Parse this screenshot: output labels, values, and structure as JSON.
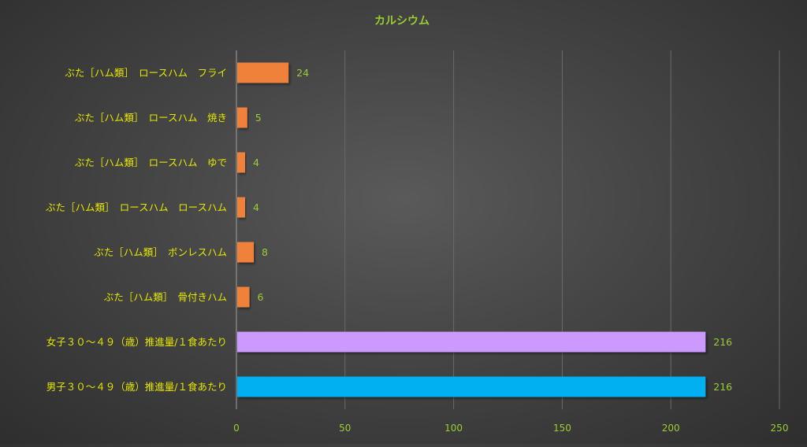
{
  "chart_data": {
    "type": "bar",
    "orientation": "horizontal",
    "title": "カルシウム",
    "xlabel": "",
    "ylabel": "",
    "xlim": [
      0,
      250
    ],
    "ticks": [
      0,
      50,
      100,
      150,
      200,
      250
    ],
    "grid": "vertical",
    "legend": "none",
    "categories": [
      "ぶた［ハム類］　ロースハム　フライ",
      "ぶた［ハム類］　ロースハム　焼き",
      "ぶた［ハム類］　ロースハム　ゆで",
      "ぶた［ハム類］　ロースハム　ロースハム",
      "ぶた［ハム類］　ボンレスハム",
      "ぶた［ハム類］　骨付きハム",
      "女子３０～４９（歳）推進量/１食あたり",
      "男子３０～４９（歳）推進量/１食あたり"
    ],
    "values": [
      24,
      5,
      4,
      4,
      8,
      6,
      216,
      216
    ],
    "value_labels": [
      "24",
      "5",
      "4",
      "4",
      "8",
      "6",
      "216",
      "216"
    ],
    "bar_colors": [
      "#f0813a",
      "#f0813a",
      "#f0813a",
      "#f0813a",
      "#f0813a",
      "#f0813a",
      "#cc99ff",
      "#00b0f0"
    ]
  },
  "colors": {
    "title": "#9acd32",
    "category_label": "#e6e600",
    "tick_label": "#9acd32",
    "value_label": "#9acd32",
    "grid": "#6a6a6a",
    "axis": "#a0a0a0"
  }
}
